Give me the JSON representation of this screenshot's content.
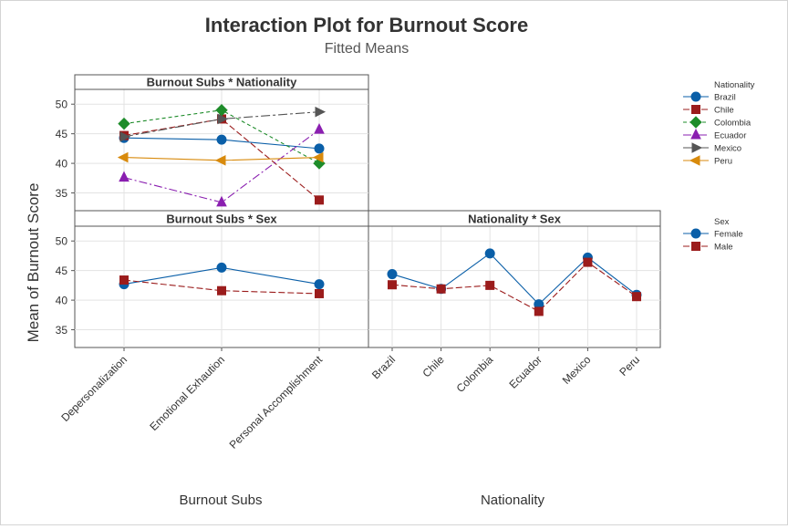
{
  "chart_data": {
    "type": "line",
    "title": "Interaction Plot for Burnout Score",
    "subtitle": "Fitted Means",
    "ylabel": "Mean of Burnout Score",
    "xlabels": [
      "Burnout Subs",
      "Nationality"
    ],
    "ylim": [
      32,
      52.5
    ],
    "yticks": [
      35,
      40,
      45,
      50
    ],
    "colors": {
      "Brazil": "#0a5fa8",
      "Chile": "#9b1c1c",
      "Colombia": "#1e8c2a",
      "Ecuador": "#8a1fb0",
      "Mexico": "#555555",
      "Peru": "#d88a0c",
      "Female": "#0a5fa8",
      "Male": "#9b1c1c"
    },
    "panels": [
      {
        "id": "subs-nationality",
        "title": "Burnout Subs * Nationality",
        "categories": [
          "Depersonalization",
          "Emotional Exhaution",
          "Personal Accomplishment"
        ],
        "show_x_ticks": false,
        "series": [
          {
            "name": "Brazil",
            "values": [
              44.3,
              44.0,
              42.5
            ],
            "marker": "circle",
            "dash": "solid"
          },
          {
            "name": "Chile",
            "values": [
              44.7,
              47.5,
              33.8
            ],
            "marker": "square",
            "dash": "longdash"
          },
          {
            "name": "Colombia",
            "values": [
              46.7,
              49.0,
              40.0
            ],
            "marker": "diamond",
            "dash": "dash"
          },
          {
            "name": "Ecuador",
            "values": [
              37.6,
              33.4,
              45.7
            ],
            "marker": "triangle",
            "dash": "dashdot"
          },
          {
            "name": "Mexico",
            "values": [
              44.5,
              47.5,
              48.7
            ],
            "marker": "right",
            "dash": "dashdotlong"
          },
          {
            "name": "Peru",
            "values": [
              41.0,
              40.5,
              41.0
            ],
            "marker": "left",
            "dash": "solid"
          }
        ]
      },
      {
        "id": "subs-sex",
        "title": "Burnout Subs * Sex",
        "categories": [
          "Depersonalization",
          "Emotional Exhaution",
          "Personal Accomplishment"
        ],
        "show_x_ticks": true,
        "series": [
          {
            "name": "Female",
            "values": [
              42.7,
              45.5,
              42.7
            ],
            "marker": "circle",
            "dash": "solid"
          },
          {
            "name": "Male",
            "values": [
              43.4,
              41.6,
              41.1
            ],
            "marker": "square",
            "dash": "longdash"
          }
        ]
      },
      {
        "id": "nationality-sex",
        "title": "Nationality * Sex",
        "categories": [
          "Brazil",
          "Chile",
          "Colombia",
          "Ecuador",
          "Mexico",
          "Peru"
        ],
        "show_x_ticks": true,
        "series": [
          {
            "name": "Female",
            "values": [
              44.4,
              41.9,
              47.9,
              39.3,
              47.2,
              40.9
            ],
            "marker": "circle",
            "dash": "solid"
          },
          {
            "name": "Male",
            "values": [
              42.6,
              41.9,
              42.5,
              38.1,
              46.4,
              40.6
            ],
            "marker": "square",
            "dash": "longdash"
          }
        ]
      }
    ],
    "legends": [
      {
        "title": "Nationality",
        "entries": [
          "Brazil",
          "Chile",
          "Colombia",
          "Ecuador",
          "Mexico",
          "Peru"
        ]
      },
      {
        "title": "Sex",
        "entries": [
          "Female",
          "Male"
        ]
      }
    ]
  }
}
